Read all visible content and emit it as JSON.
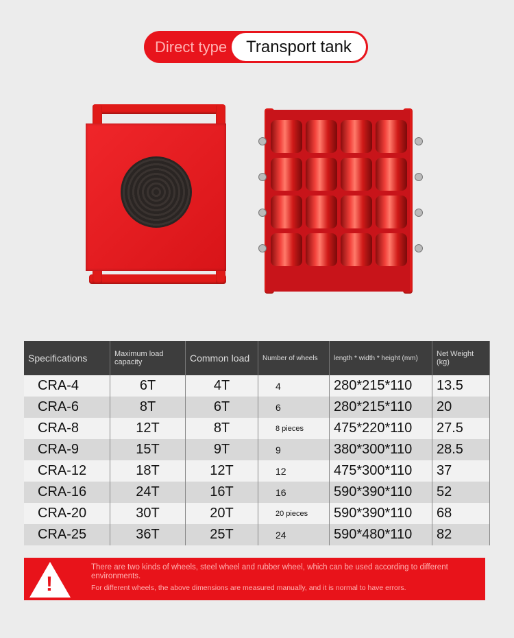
{
  "banner": {
    "left": "Direct type",
    "right": "Transport tank"
  },
  "table": {
    "headers": [
      "Specifications",
      "Maximum load capacity",
      "Common load",
      "Number of wheels",
      "length * width * height (mm)",
      "Net Weight (kg)"
    ],
    "rows": [
      [
        "CRA-4",
        "6T",
        "4T",
        "4",
        "280*215*110",
        "13.5"
      ],
      [
        "CRA-6",
        "8T",
        "6T",
        "6",
        "280*215*110",
        "20"
      ],
      [
        "CRA-8",
        "12T",
        "8T",
        "8 pieces",
        "475*220*110",
        "27.5"
      ],
      [
        "CRA-9",
        "15T",
        "9T",
        "9",
        "380*300*110",
        "28.5"
      ],
      [
        "CRA-12",
        "18T",
        "12T",
        "12",
        "475*300*110",
        "37"
      ],
      [
        "CRA-16",
        "24T",
        "16T",
        "16",
        "590*390*110",
        "52"
      ],
      [
        "CRA-20",
        "30T",
        "20T",
        "20 pieces",
        "590*390*110",
        "68"
      ],
      [
        "CRA-25",
        "36T",
        "25T",
        "24",
        "590*480*110",
        "82"
      ]
    ]
  },
  "notice": {
    "icon": "warning-icon",
    "line1": "There are two kinds of wheels, steel wheel and rubber wheel, which can be used according to different environments.",
    "line2": "For different wheels, the above dimensions are measured manually, and it is normal to have errors."
  },
  "colors": {
    "brand_red": "#e8141c",
    "header": "#3d3d3d"
  }
}
